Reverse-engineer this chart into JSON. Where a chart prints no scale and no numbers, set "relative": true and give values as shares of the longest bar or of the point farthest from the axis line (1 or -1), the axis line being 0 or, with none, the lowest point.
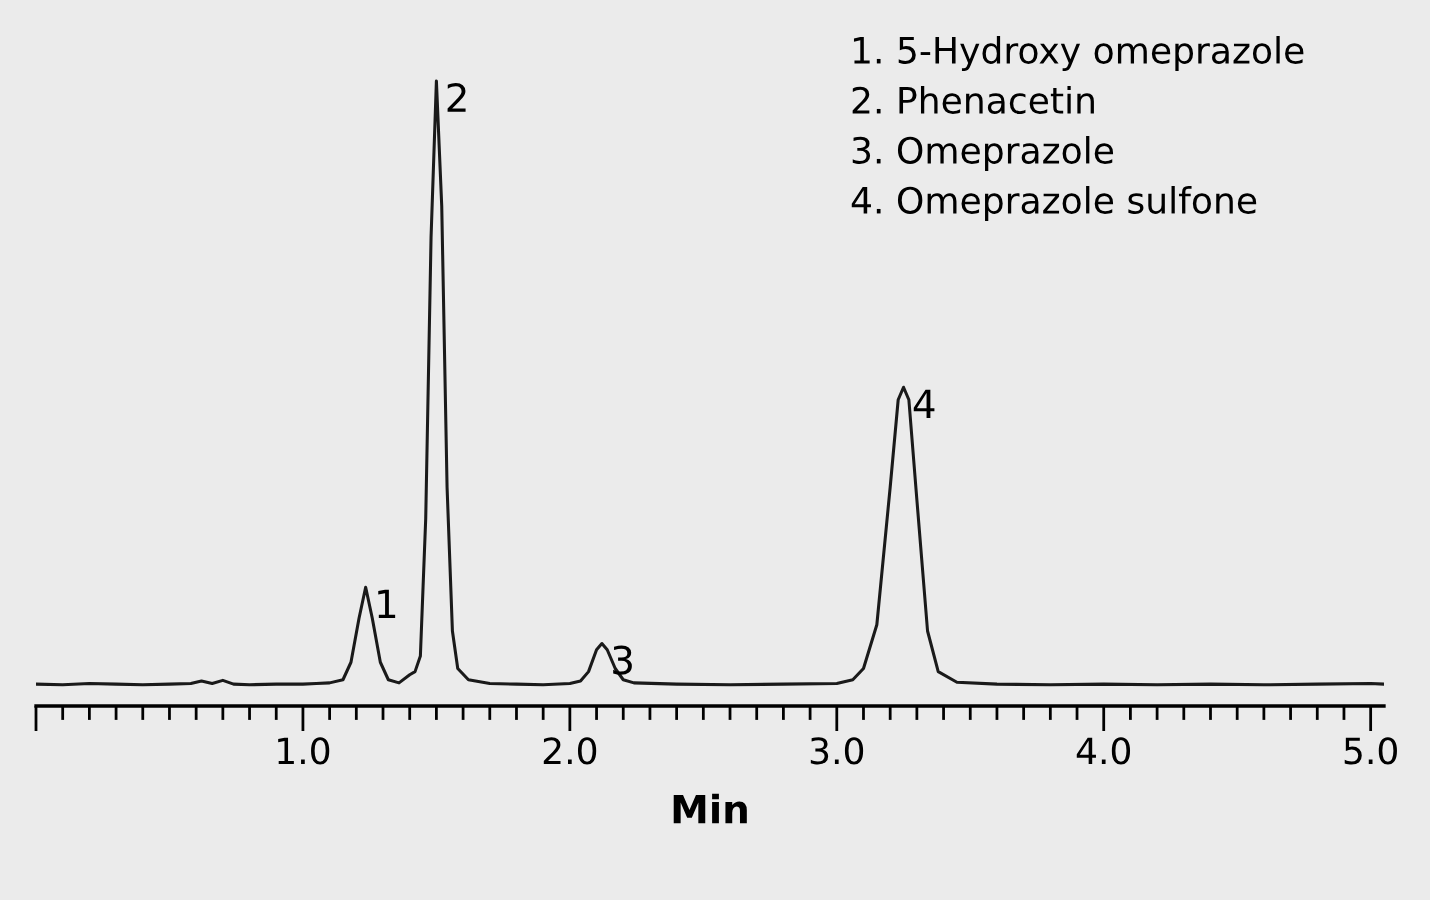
{
  "chart_data": {
    "type": "line",
    "relative": true,
    "xlabel": "Min",
    "color": "#1a1a1a",
    "grid": false,
    "legend": false,
    "marker": "none",
    "line_style": "solid",
    "x": [
      0.0,
      0.1,
      0.2,
      0.3,
      0.4,
      0.5,
      0.58,
      0.62,
      0.66,
      0.7,
      0.74,
      0.8,
      0.9,
      1.0,
      1.05,
      1.1,
      1.15,
      1.18,
      1.21,
      1.235,
      1.26,
      1.29,
      1.32,
      1.36,
      1.4,
      1.42,
      1.44,
      1.46,
      1.48,
      1.5,
      1.52,
      1.54,
      1.56,
      1.58,
      1.62,
      1.7,
      1.8,
      1.9,
      2.0,
      2.04,
      2.07,
      2.1,
      2.12,
      2.14,
      2.17,
      2.2,
      2.24,
      2.4,
      2.6,
      2.8,
      3.0,
      3.06,
      3.1,
      3.15,
      3.2,
      3.23,
      3.25,
      3.27,
      3.3,
      3.34,
      3.38,
      3.45,
      3.6,
      3.8,
      4.0,
      4.2,
      4.4,
      4.6,
      4.8,
      5.0,
      5.05
    ],
    "values": [
      0.035,
      0.034,
      0.036,
      0.035,
      0.034,
      0.035,
      0.036,
      0.04,
      0.036,
      0.041,
      0.035,
      0.034,
      0.035,
      0.035,
      0.036,
      0.037,
      0.042,
      0.07,
      0.14,
      0.19,
      0.14,
      0.07,
      0.042,
      0.037,
      0.05,
      0.055,
      0.08,
      0.3,
      0.75,
      1.0,
      0.8,
      0.35,
      0.12,
      0.06,
      0.042,
      0.036,
      0.035,
      0.034,
      0.036,
      0.04,
      0.055,
      0.09,
      0.1,
      0.09,
      0.06,
      0.042,
      0.037,
      0.035,
      0.034,
      0.035,
      0.036,
      0.042,
      0.06,
      0.13,
      0.35,
      0.49,
      0.51,
      0.49,
      0.33,
      0.12,
      0.055,
      0.038,
      0.035,
      0.034,
      0.035,
      0.034,
      0.035,
      0.034,
      0.035,
      0.036,
      0.035
    ],
    "xlim": [
      0,
      5.05
    ],
    "xticks": [
      {
        "value": 0,
        "label": null
      },
      {
        "value": 0.1,
        "label": null
      },
      {
        "value": 0.2,
        "label": null
      },
      {
        "value": 0.3,
        "label": null
      },
      {
        "value": 0.4,
        "label": null
      },
      {
        "value": 0.5,
        "label": null
      },
      {
        "value": 0.6,
        "label": null
      },
      {
        "value": 0.7,
        "label": null
      },
      {
        "value": 0.8,
        "label": null
      },
      {
        "value": 0.9,
        "label": null
      },
      {
        "value": 1,
        "label": "1.0"
      },
      {
        "value": 1.1,
        "label": null
      },
      {
        "value": 1.2,
        "label": null
      },
      {
        "value": 1.3,
        "label": null
      },
      {
        "value": 1.4,
        "label": null
      },
      {
        "value": 1.5,
        "label": null
      },
      {
        "value": 1.6,
        "label": null
      },
      {
        "value": 1.7,
        "label": null
      },
      {
        "value": 1.8,
        "label": null
      },
      {
        "value": 1.9,
        "label": null
      },
      {
        "value": 2,
        "label": "2.0"
      },
      {
        "value": 2.1,
        "label": null
      },
      {
        "value": 2.2,
        "label": null
      },
      {
        "value": 2.3,
        "label": null
      },
      {
        "value": 2.4,
        "label": null
      },
      {
        "value": 2.5,
        "label": null
      },
      {
        "value": 2.6,
        "label": null
      },
      {
        "value": 2.7,
        "label": null
      },
      {
        "value": 2.8,
        "label": null
      },
      {
        "value": 2.9,
        "label": null
      },
      {
        "value": 3,
        "label": "3.0"
      },
      {
        "value": 3.1,
        "label": null
      },
      {
        "value": 3.2,
        "label": null
      },
      {
        "value": 3.3,
        "label": null
      },
      {
        "value": 3.4,
        "label": null
      },
      {
        "value": 3.5,
        "label": null
      },
      {
        "value": 3.6,
        "label": null
      },
      {
        "value": 3.7,
        "label": null
      },
      {
        "value": 3.8,
        "label": null
      },
      {
        "value": 3.9,
        "label": null
      },
      {
        "value": 4,
        "label": "4.0"
      },
      {
        "value": 4.1,
        "label": null
      },
      {
        "value": 4.2,
        "label": null
      },
      {
        "value": 4.3,
        "label": null
      },
      {
        "value": 4.4,
        "label": null
      },
      {
        "value": 4.5,
        "label": null
      },
      {
        "value": 4.6,
        "label": null
      },
      {
        "value": 4.7,
        "label": null
      },
      {
        "value": 4.8,
        "label": null
      },
      {
        "value": 4.9,
        "label": null
      },
      {
        "value": 5,
        "label": "5.0"
      }
    ],
    "annotations": [
      {
        "text": "1",
        "x": 1.235,
        "y": 0.19
      },
      {
        "text": "2",
        "x": 1.5,
        "y": 1.0
      },
      {
        "text": "3",
        "x": 2.12,
        "y": 0.1
      },
      {
        "text": "4",
        "x": 3.25,
        "y": 0.51
      },
      "1. 5-Hydroxy omeprazole",
      "2. Phenacetin",
      "3. Omeprazole",
      "4. Omeprazole sulfone"
    ]
  }
}
